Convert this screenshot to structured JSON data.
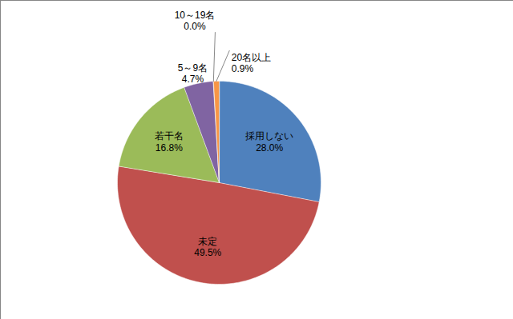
{
  "chart_data": {
    "type": "pie",
    "categories": [
      "採用しない",
      "未定",
      "若干名",
      "5～9名",
      "10～19名",
      "20名以上"
    ],
    "values": [
      28.0,
      49.5,
      16.8,
      4.7,
      0.0,
      0.9
    ],
    "value_labels": [
      "28.0%",
      "49.5%",
      "16.8%",
      "4.7%",
      "0.0%",
      "0.9%"
    ],
    "colors": [
      "#4f81bd",
      "#c0504d",
      "#9bbb59",
      "#8064a2",
      "#4bacc6",
      "#f79646"
    ],
    "data_labels": true
  }
}
